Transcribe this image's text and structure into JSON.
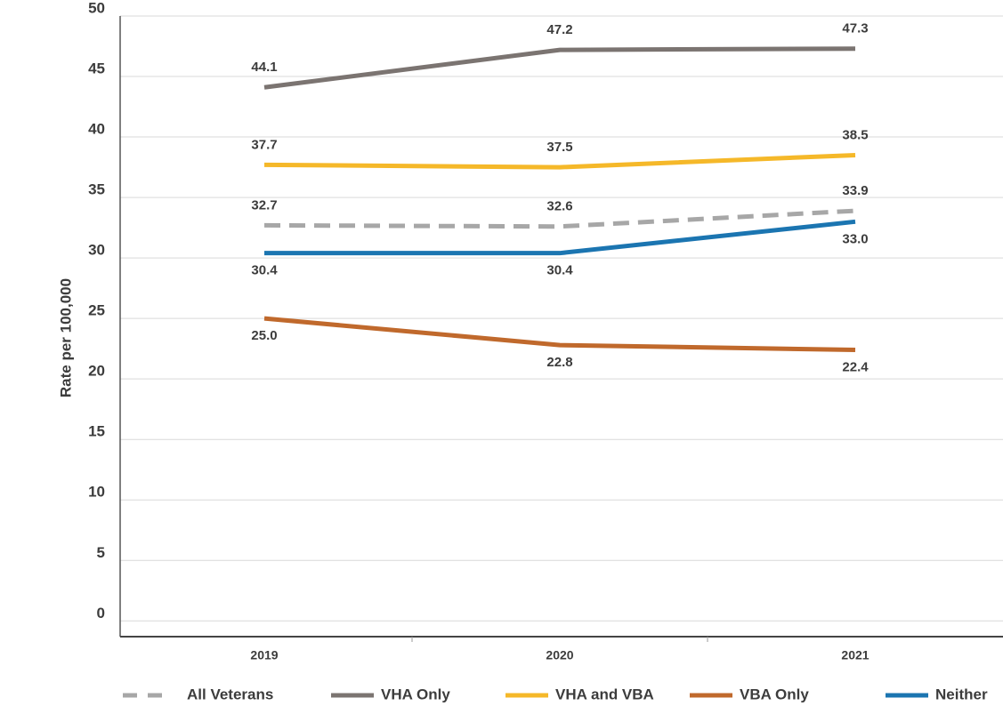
{
  "chart_data": {
    "type": "line",
    "y_label": "Rate per 100,000",
    "categories": [
      "2019",
      "2020",
      "2021"
    ],
    "series": [
      {
        "name": "All Veterans",
        "color": "#a7a7a7",
        "line_style": "dashed",
        "values": [
          32.7,
          32.6,
          33.9
        ],
        "value_labels": [
          "32.7",
          "32.6",
          "33.9"
        ]
      },
      {
        "name": "VHA Only",
        "color": "#7b7471",
        "line_style": "solid",
        "values": [
          44.1,
          47.2,
          47.3
        ],
        "value_labels": [
          "44.1",
          "47.2",
          "47.3"
        ]
      },
      {
        "name": "VHA and VBA",
        "color": "#f5b829",
        "line_style": "solid",
        "values": [
          37.7,
          37.5,
          38.5
        ],
        "value_labels": [
          "37.7",
          "37.5",
          "38.5"
        ]
      },
      {
        "name": "VBA Only",
        "color": "#c0692c",
        "line_style": "solid",
        "values": [
          25.0,
          22.8,
          22.4
        ],
        "value_labels": [
          "25.0",
          "22.8",
          "22.4"
        ]
      },
      {
        "name": "Neither",
        "color": "#1b75b1",
        "line_style": "solid",
        "values": [
          30.4,
          30.4,
          33.0
        ],
        "value_labels": [
          "30.4",
          "30.4",
          "33.0"
        ]
      }
    ],
    "ylim": [
      -1.3,
      50
    ],
    "yticks": [
      0,
      5,
      10,
      15,
      20,
      25,
      30,
      35,
      40,
      45,
      50
    ],
    "grid": true,
    "legend": "bottom"
  }
}
